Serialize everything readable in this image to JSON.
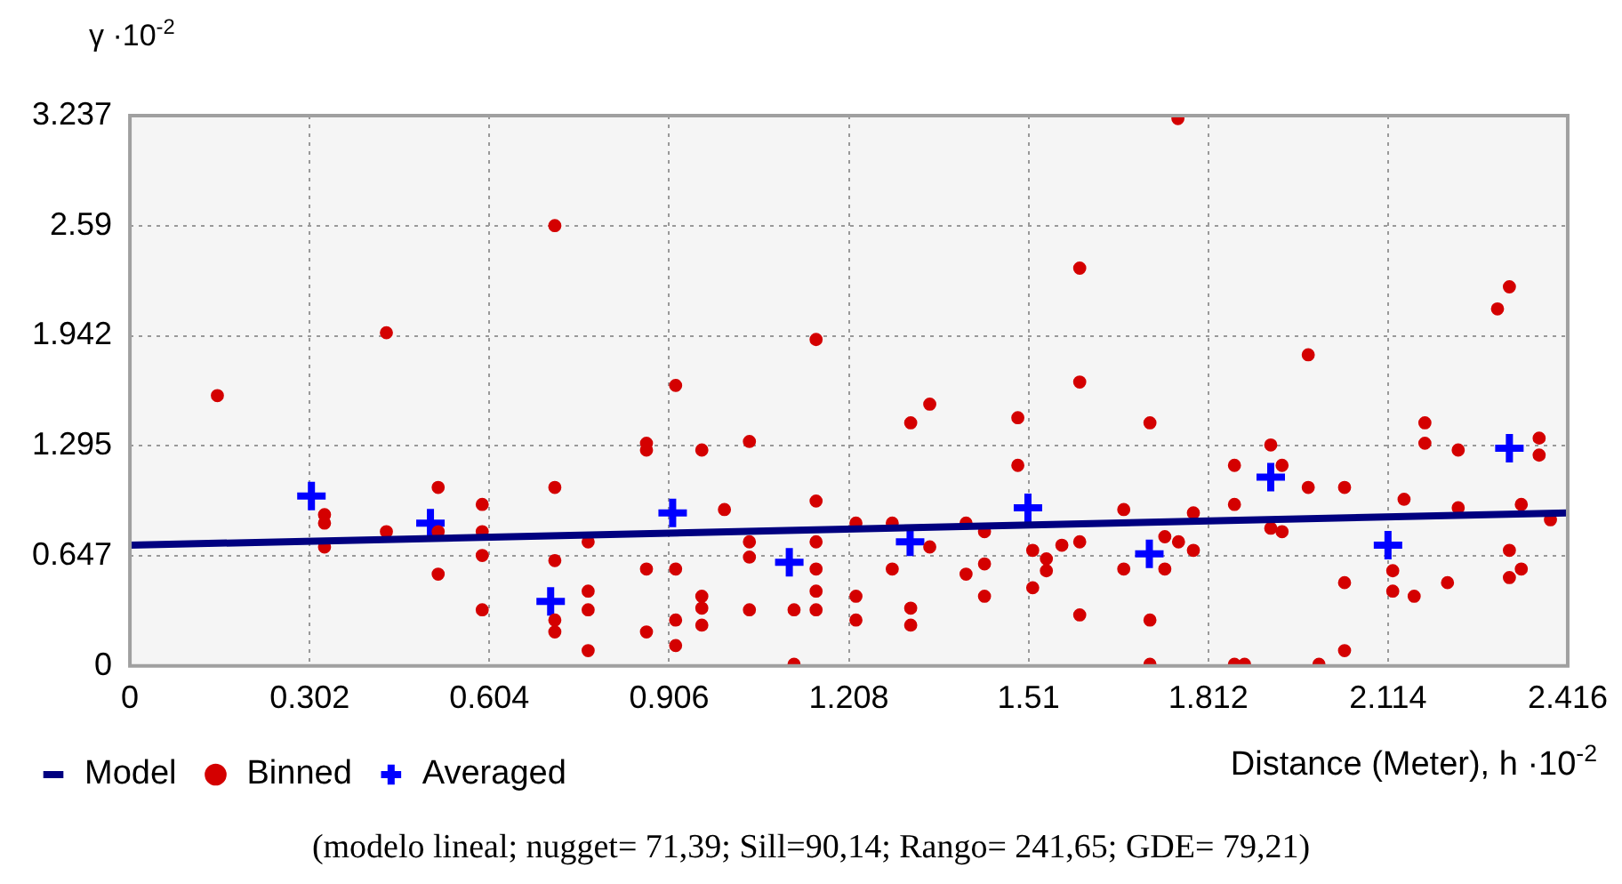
{
  "chart_data": {
    "type": "scatter",
    "ylabel": "γ ·10$^{-2}$",
    "xlabel": "Distance (Meter), h ·10$^{-2}$",
    "annotations": [
      "(modelo lineal; nugget= 71,39; Sill=90,14; Rango= 241,65; GDE= 79,21)"
    ],
    "xlim": [
      0,
      2.416
    ],
    "xticks": [
      0,
      0.302,
      0.604,
      0.906,
      1.208,
      1.51,
      1.812,
      2.114,
      2.416
    ],
    "ylim": [
      0,
      3.237
    ],
    "yticks": [
      0,
      0.647,
      1.295,
      1.942,
      2.59,
      3.237
    ],
    "grid": true,
    "legend": "bottom left",
    "series": [
      {
        "name": "Model",
        "type": "line",
        "color": "#000080",
        "marker": "none",
        "line_style": "solid",
        "x": [
          0,
          2.416
        ],
        "values": [
          0.71,
          0.9
        ]
      },
      {
        "name": "Binned",
        "color": "#d40000",
        "marker": "circle",
        "x": [
          0.147,
          0.431,
          0.714,
          0.327,
          0.327,
          0.327,
          0.431,
          0.518,
          0.518,
          0.518,
          0.592,
          0.592,
          0.592,
          0.592,
          0.714,
          0.714,
          0.714,
          0.714,
          0.77,
          0.77,
          0.77,
          0.77,
          0.868,
          0.868,
          0.868,
          0.868,
          0.917,
          0.917,
          0.917,
          0.917,
          0.961,
          0.961,
          0.961,
          0.961,
          0.999,
          1.041,
          1.041,
          1.041,
          1.041,
          1.116,
          1.116,
          1.153,
          1.153,
          1.153,
          1.153,
          1.153,
          1.153,
          1.22,
          1.22,
          1.22,
          1.281,
          1.281,
          1.312,
          1.312,
          1.312,
          1.344,
          1.344,
          1.405,
          1.405,
          1.436,
          1.436,
          1.436,
          1.492,
          1.492,
          1.517,
          1.517,
          1.54,
          1.54,
          1.566,
          1.596,
          1.596,
          1.596,
          1.596,
          1.67,
          1.67,
          1.714,
          1.714,
          1.714,
          1.739,
          1.739,
          1.761,
          1.762,
          1.787,
          1.787,
          1.856,
          1.856,
          1.856,
          1.873,
          1.917,
          1.917,
          1.936,
          1.936,
          1.98,
          1.98,
          1.998,
          2.041,
          2.041,
          2.041,
          2.122,
          2.122,
          2.141,
          2.158,
          2.176,
          2.176,
          2.214,
          2.232,
          2.232,
          2.298,
          2.318,
          2.318,
          2.318,
          2.338,
          2.338,
          2.368,
          2.368,
          2.387
        ],
        "values": [
          1.59,
          1.96,
          2.59,
          0.89,
          0.84,
          0.7,
          0.79,
          1.05,
          0.79,
          0.54,
          0.95,
          0.79,
          0.65,
          0.33,
          1.05,
          0.62,
          0.27,
          0.2,
          0.73,
          0.44,
          0.33,
          0.09,
          1.31,
          1.27,
          0.57,
          0.2,
          1.65,
          0.57,
          0.27,
          0.12,
          1.27,
          0.41,
          0.34,
          0.24,
          0.92,
          1.32,
          0.73,
          0.64,
          0.33,
          0.33,
          0.01,
          1.92,
          0.97,
          0.73,
          0.57,
          0.44,
          0.33,
          0.84,
          0.41,
          0.27,
          0.84,
          0.57,
          1.43,
          0.34,
          0.24,
          1.54,
          0.7,
          0.84,
          0.54,
          0.79,
          0.6,
          0.41,
          1.46,
          1.18,
          0.68,
          0.46,
          0.63,
          0.56,
          0.71,
          2.34,
          1.67,
          0.73,
          0.3,
          0.92,
          0.57,
          1.43,
          0.27,
          0.01,
          0.76,
          0.57,
          3.22,
          0.73,
          0.9,
          0.68,
          1.18,
          0.95,
          0.01,
          0.01,
          1.3,
          0.81,
          1.18,
          0.79,
          1.83,
          1.05,
          0.01,
          1.05,
          0.49,
          0.09,
          0.56,
          0.44,
          0.98,
          0.41,
          1.43,
          1.31,
          0.49,
          1.27,
          0.93,
          2.1,
          2.23,
          0.68,
          0.52,
          0.95,
          0.57,
          1.34,
          1.24,
          0.86
        ]
      },
      {
        "name": "Averaged",
        "color": "#0000ff",
        "marker": "cross",
        "x": [
          0.305,
          0.505,
          0.707,
          0.912,
          1.108,
          1.311,
          1.509,
          1.713,
          1.917,
          2.114,
          2.318
        ],
        "values": [
          1.0,
          0.84,
          0.38,
          0.9,
          0.61,
          0.73,
          0.93,
          0.66,
          1.11,
          0.71,
          1.28
        ]
      }
    ]
  }
}
